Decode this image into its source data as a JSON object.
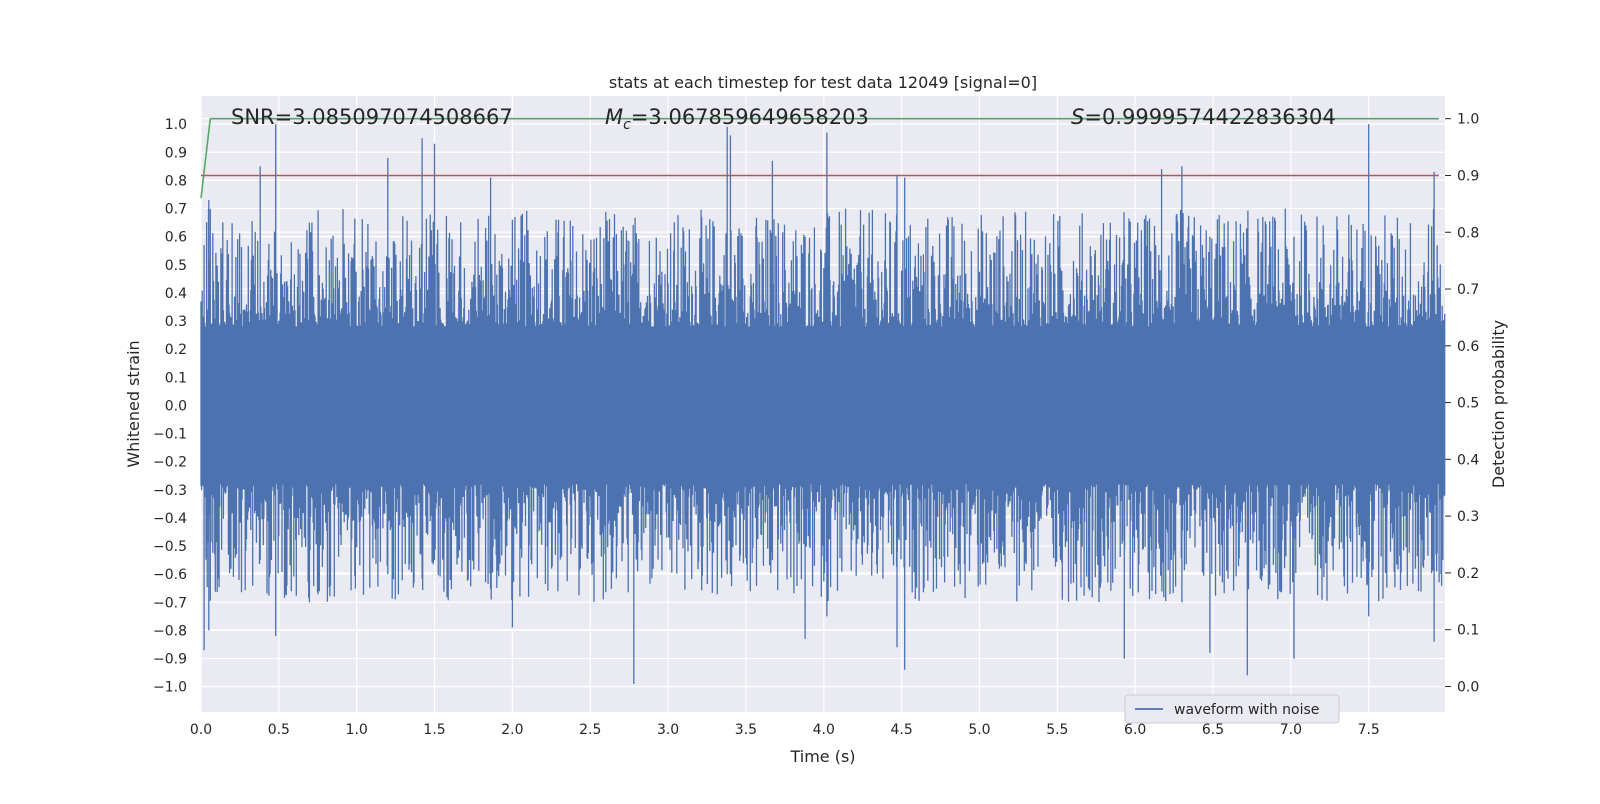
{
  "chart_data": {
    "type": "line",
    "title": "stats at each timestep for test data 12049 [signal=0]",
    "xlabel": "Time (s)",
    "ylabel": "Whitened strain",
    "ylabel_right": "Detection probability",
    "xlim": [
      0.0,
      7.99
    ],
    "ylim": [
      -1.09,
      1.1
    ],
    "ylim_right": [
      -0.045,
      1.04
    ],
    "x_ticks": [
      "0.0",
      "0.5",
      "1.0",
      "1.5",
      "2.0",
      "2.5",
      "3.0",
      "3.5",
      "4.0",
      "4.5",
      "5.0",
      "5.5",
      "6.0",
      "6.5",
      "7.0",
      "7.5"
    ],
    "y_ticks": [
      "1.0",
      "0.9",
      "0.8",
      "0.7",
      "0.6",
      "0.5",
      "0.4",
      "0.3",
      "0.2",
      "0.1",
      "0.0",
      "−0.1",
      "−0.2",
      "−0.3",
      "−0.4",
      "−0.5",
      "−0.6",
      "−0.7",
      "−0.8",
      "−0.9",
      "−1.0"
    ],
    "y_ticks_right": [
      "1.0",
      "0.9",
      "0.8",
      "0.7",
      "0.6",
      "0.5",
      "0.4",
      "0.3",
      "0.2",
      "0.1",
      "0.0"
    ],
    "grid": true,
    "annotations": {
      "snr": "SNR=3.085097074508667",
      "mc_symbol": "M",
      "mc_sub": "c",
      "mc_value": "=3.067859649658203",
      "s_symbol": "S",
      "s_value": "=0.9999574422836304"
    },
    "legend": {
      "label": "waveform with noise",
      "position": "lower right"
    },
    "series": [
      {
        "name": "waveform with noise",
        "axis": "left",
        "color": "#4c72b0",
        "kind": "noise",
        "x_range": [
          0.0,
          7.99
        ],
        "band_abs": 0.28,
        "peaks": [
          {
            "x": 0.02,
            "max": 0.57,
            "min": -0.87
          },
          {
            "x": 0.05,
            "max": 0.73,
            "min": -0.8
          },
          {
            "x": 0.38,
            "max": 0.85,
            "min": -0.55
          },
          {
            "x": 0.48,
            "max": 1.0,
            "min": -0.82
          },
          {
            "x": 1.2,
            "max": 0.88,
            "min": -0.6
          },
          {
            "x": 1.42,
            "max": 0.95,
            "min": -0.55
          },
          {
            "x": 1.5,
            "max": 0.93,
            "min": -0.55
          },
          {
            "x": 1.86,
            "max": 0.81,
            "min": -0.6
          },
          {
            "x": 2.0,
            "max": 0.66,
            "min": -0.79
          },
          {
            "x": 2.78,
            "max": 0.5,
            "min": -0.99
          },
          {
            "x": 3.38,
            "max": 0.99,
            "min": -0.6
          },
          {
            "x": 3.4,
            "max": 0.96,
            "min": -0.6
          },
          {
            "x": 3.67,
            "max": 0.87,
            "min": -0.55
          },
          {
            "x": 3.88,
            "max": 0.6,
            "min": -0.83
          },
          {
            "x": 4.02,
            "max": 0.97,
            "min": -0.75
          },
          {
            "x": 4.47,
            "max": 0.82,
            "min": -0.86
          },
          {
            "x": 4.52,
            "max": 0.81,
            "min": -0.94
          },
          {
            "x": 5.93,
            "max": 0.6,
            "min": -0.9
          },
          {
            "x": 6.17,
            "max": 0.84,
            "min": -0.6
          },
          {
            "x": 6.3,
            "max": 0.85,
            "min": -0.7
          },
          {
            "x": 6.48,
            "max": 0.6,
            "min": -0.88
          },
          {
            "x": 6.72,
            "max": 0.6,
            "min": -0.96
          },
          {
            "x": 7.02,
            "max": 0.6,
            "min": -0.9
          },
          {
            "x": 7.5,
            "max": 1.0,
            "min": -0.75
          },
          {
            "x": 7.92,
            "max": 0.83,
            "min": -0.84
          }
        ]
      },
      {
        "name": "detection probability",
        "axis": "right",
        "color": "#55a868",
        "x": [
          0.0,
          0.06,
          0.1,
          7.95
        ],
        "y": [
          0.86,
          1.0,
          1.0,
          1.0
        ]
      },
      {
        "name": "threshold",
        "axis": "right",
        "color": "#c44e52",
        "x": [
          0.0,
          7.95
        ],
        "y": [
          0.9,
          0.9
        ]
      }
    ]
  }
}
